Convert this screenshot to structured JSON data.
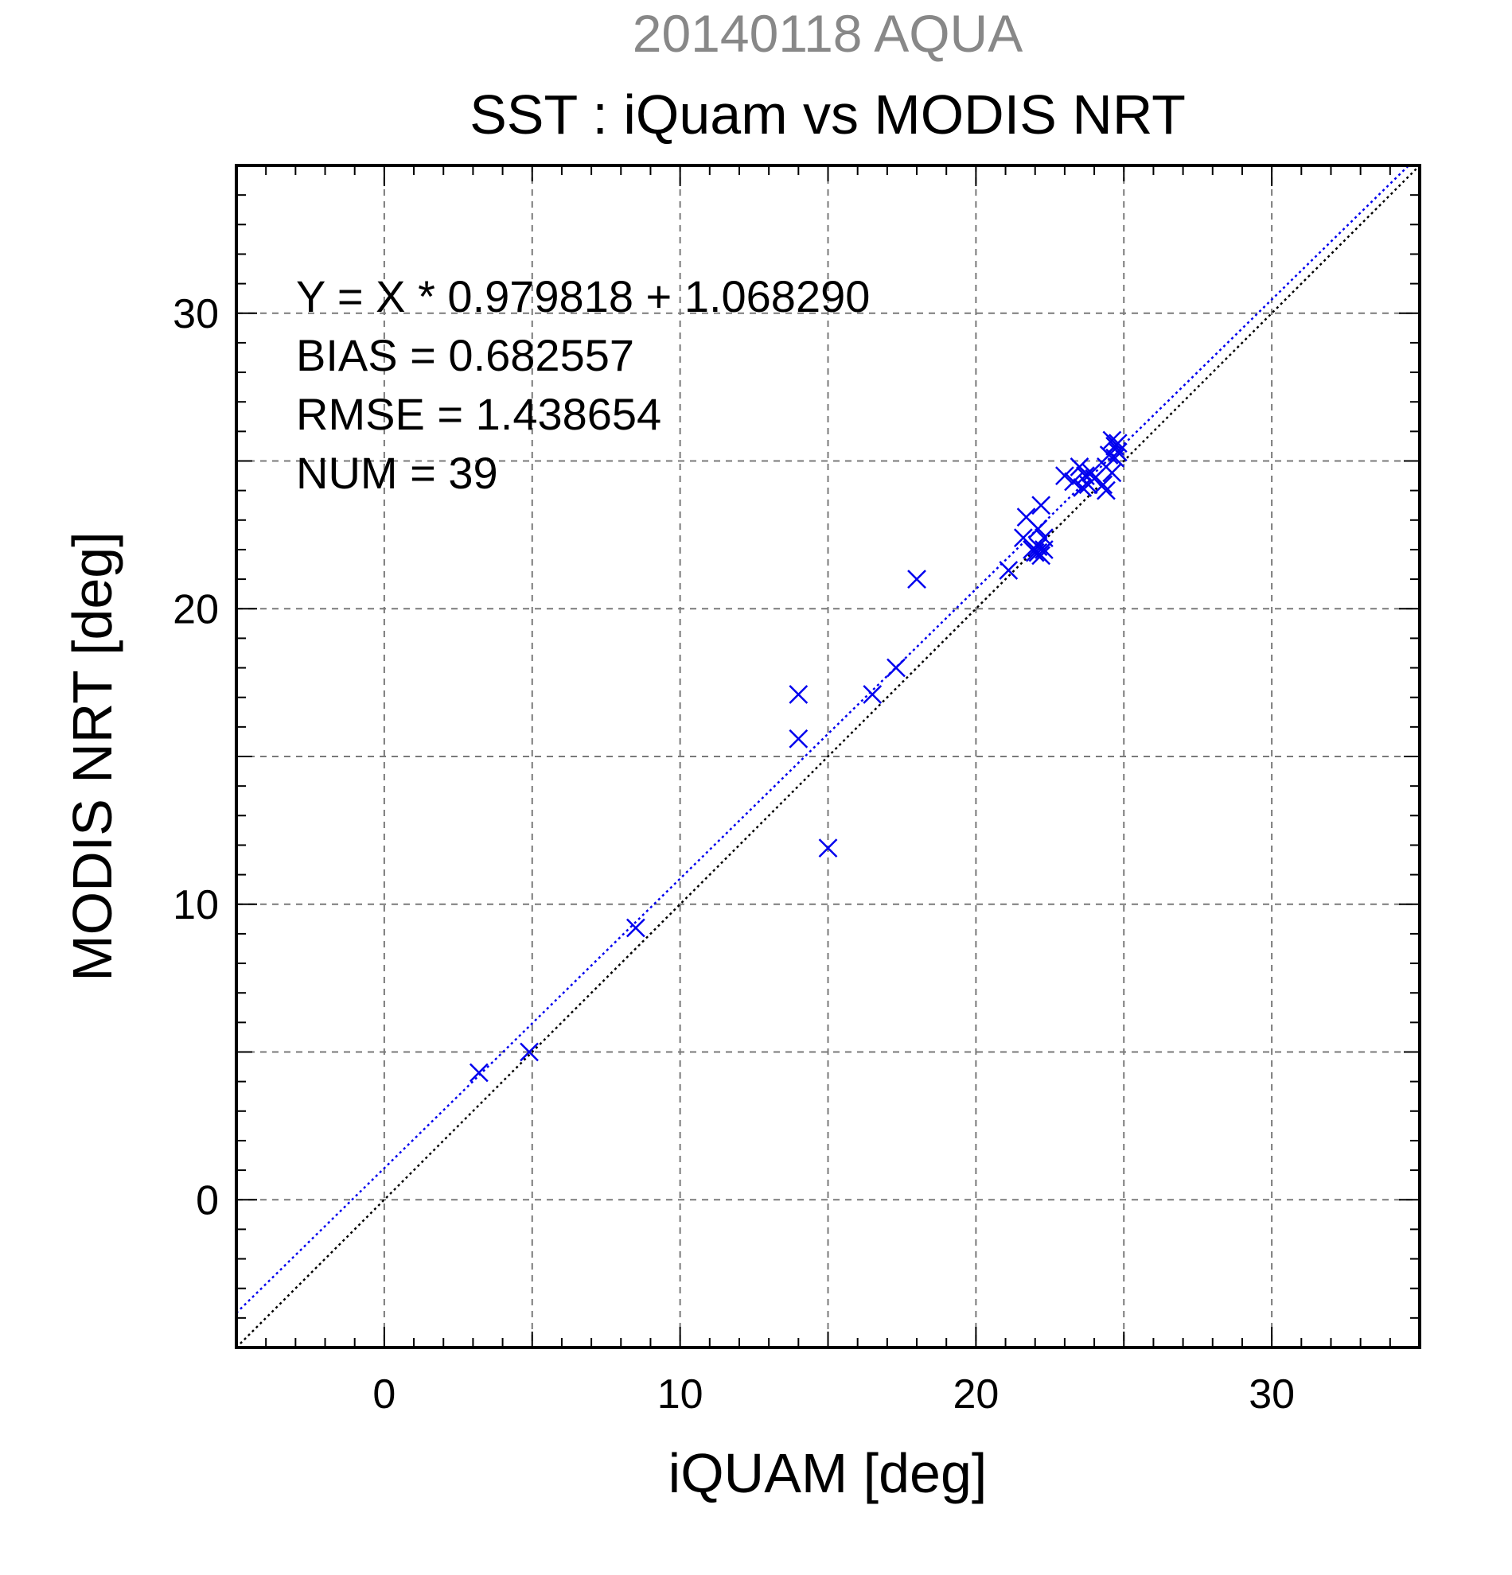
{
  "supertitle": "20140118 AQUA",
  "stats": {
    "fit": "Y = X * 0.979818 + 1.068290",
    "bias": "BIAS = 0.682557",
    "rmse": "RMSE = 1.438654",
    "num": "NUM = 39"
  },
  "colors": {
    "points": "#0000ee",
    "fit_line": "#0000ee",
    "identity_line": "#000000",
    "grid": "#7a7a7a",
    "supertitle": "#888888"
  },
  "chart_data": {
    "type": "scatter",
    "title": "SST : iQuam vs MODIS NRT",
    "xlabel": "iQUAM [deg]",
    "ylabel": "MODIS NRT [deg]",
    "xlim": [
      -5,
      35
    ],
    "ylim": [
      -5,
      35
    ],
    "xticks": [
      0,
      10,
      20,
      30
    ],
    "yticks": [
      0,
      10,
      20,
      30
    ],
    "grid": true,
    "grid_step": 5,
    "marker": "x",
    "fit_line": {
      "slope": 0.979818,
      "intercept": 1.06829,
      "style": "dotted"
    },
    "identity_line": {
      "slope": 1,
      "intercept": 0,
      "style": "dotted"
    },
    "points": [
      {
        "x": 3.2,
        "y": 4.3
      },
      {
        "x": 4.9,
        "y": 5.0
      },
      {
        "x": 8.5,
        "y": 9.2
      },
      {
        "x": 14.0,
        "y": 17.1
      },
      {
        "x": 14.0,
        "y": 15.6
      },
      {
        "x": 15.0,
        "y": 11.9
      },
      {
        "x": 16.5,
        "y": 17.1
      },
      {
        "x": 17.3,
        "y": 18.0
      },
      {
        "x": 18.0,
        "y": 21.0
      },
      {
        "x": 21.1,
        "y": 21.3
      },
      {
        "x": 21.6,
        "y": 22.4
      },
      {
        "x": 21.7,
        "y": 23.1
      },
      {
        "x": 21.9,
        "y": 22.0
      },
      {
        "x": 22.0,
        "y": 21.9
      },
      {
        "x": 22.1,
        "y": 22.1
      },
      {
        "x": 22.1,
        "y": 22.7
      },
      {
        "x": 22.2,
        "y": 21.8
      },
      {
        "x": 22.2,
        "y": 23.5
      },
      {
        "x": 22.3,
        "y": 22.0
      },
      {
        "x": 22.3,
        "y": 22.4
      },
      {
        "x": 23.0,
        "y": 24.5
      },
      {
        "x": 23.3,
        "y": 24.3
      },
      {
        "x": 23.5,
        "y": 24.8
      },
      {
        "x": 23.6,
        "y": 24.1
      },
      {
        "x": 23.7,
        "y": 24.5
      },
      {
        "x": 23.8,
        "y": 24.2
      },
      {
        "x": 24.0,
        "y": 24.4
      },
      {
        "x": 24.3,
        "y": 24.2
      },
      {
        "x": 24.4,
        "y": 24.8
      },
      {
        "x": 24.4,
        "y": 24.0
      },
      {
        "x": 24.5,
        "y": 25.2
      },
      {
        "x": 24.6,
        "y": 24.6
      },
      {
        "x": 24.6,
        "y": 25.7
      },
      {
        "x": 24.7,
        "y": 25.1
      },
      {
        "x": 24.7,
        "y": 25.5
      },
      {
        "x": 24.8,
        "y": 25.6
      },
      {
        "x": 24.8,
        "y": 25.3
      },
      {
        "x": 22.1,
        "y": 21.9
      },
      {
        "x": 23.9,
        "y": 24.6
      }
    ]
  }
}
